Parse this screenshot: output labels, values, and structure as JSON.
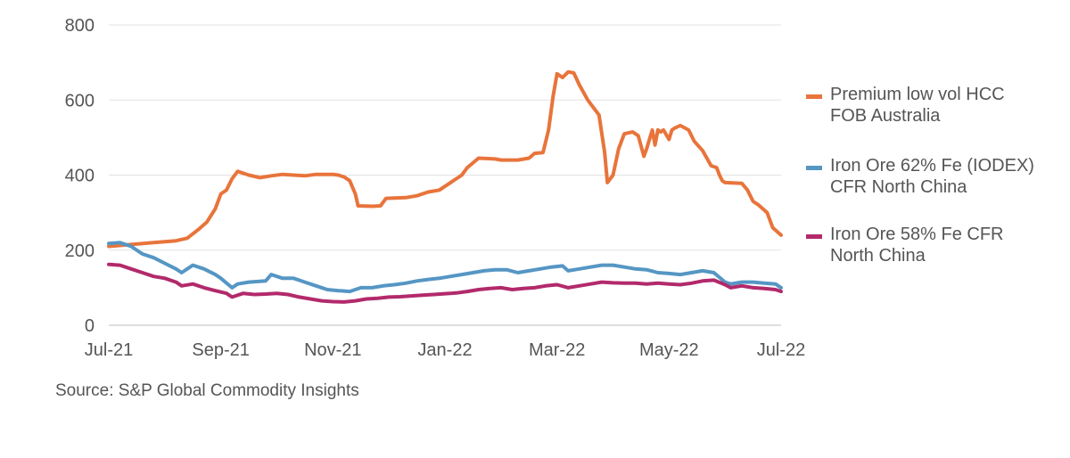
{
  "chart_data": {
    "type": "line",
    "title": "",
    "xlabel": "",
    "ylabel": "",
    "ylim": [
      0,
      800
    ],
    "yticks": [
      "0",
      "200",
      "400",
      "600",
      "800"
    ],
    "xlim": [
      0,
      12
    ],
    "xticks": [
      {
        "x": 0,
        "label": "Jul-21"
      },
      {
        "x": 2,
        "label": "Sep-21"
      },
      {
        "x": 4,
        "label": "Nov-21"
      },
      {
        "x": 6,
        "label": "Jan-22"
      },
      {
        "x": 8,
        "label": "Mar-22"
      },
      {
        "x": 10,
        "label": "May-22"
      },
      {
        "x": 12,
        "label": "Jul-22"
      }
    ],
    "grid": "horizontal",
    "legend_position": "right",
    "source": "Source: S&P Global Commodity Insights",
    "series": [
      {
        "name": "Premium low vol HCC FOB Australia",
        "legend_lines": [
          "Premium low vol HCC",
          "FOB Australia"
        ],
        "color": "#E8743B",
        "points": [
          [
            0,
            210
          ],
          [
            0.4,
            215
          ],
          [
            0.8,
            220
          ],
          [
            1.2,
            225
          ],
          [
            1.4,
            232
          ],
          [
            1.6,
            255
          ],
          [
            1.75,
            275
          ],
          [
            1.9,
            310
          ],
          [
            2.0,
            350
          ],
          [
            2.1,
            360
          ],
          [
            2.2,
            390
          ],
          [
            2.3,
            410
          ],
          [
            2.5,
            400
          ],
          [
            2.7,
            393
          ],
          [
            2.9,
            398
          ],
          [
            3.1,
            402
          ],
          [
            3.3,
            400
          ],
          [
            3.5,
            398
          ],
          [
            3.7,
            402
          ],
          [
            4.0,
            402
          ],
          [
            4.1,
            400
          ],
          [
            4.2,
            395
          ],
          [
            4.3,
            385
          ],
          [
            4.4,
            350
          ],
          [
            4.45,
            318
          ],
          [
            4.7,
            317
          ],
          [
            4.85,
            318
          ],
          [
            4.95,
            338
          ],
          [
            5.3,
            340
          ],
          [
            5.5,
            345
          ],
          [
            5.7,
            355
          ],
          [
            5.9,
            360
          ],
          [
            6.1,
            380
          ],
          [
            6.3,
            400
          ],
          [
            6.4,
            420
          ],
          [
            6.6,
            445
          ],
          [
            6.9,
            443
          ],
          [
            7.0,
            440
          ],
          [
            7.3,
            440
          ],
          [
            7.5,
            445
          ],
          [
            7.6,
            458
          ],
          [
            7.75,
            460
          ],
          [
            7.85,
            520
          ],
          [
            7.93,
            610
          ],
          [
            8.0,
            670
          ],
          [
            8.1,
            660
          ],
          [
            8.2,
            675
          ],
          [
            8.3,
            672
          ],
          [
            8.4,
            640
          ],
          [
            8.55,
            600
          ],
          [
            8.75,
            560
          ],
          [
            8.85,
            460
          ],
          [
            8.9,
            380
          ],
          [
            9.0,
            400
          ],
          [
            9.1,
            470
          ],
          [
            9.2,
            510
          ],
          [
            9.35,
            515
          ],
          [
            9.45,
            505
          ],
          [
            9.55,
            450
          ],
          [
            9.6,
            470
          ],
          [
            9.7,
            520
          ],
          [
            9.75,
            480
          ],
          [
            9.8,
            520
          ],
          [
            9.85,
            515
          ],
          [
            9.9,
            520
          ],
          [
            10.0,
            495
          ],
          [
            10.05,
            520
          ],
          [
            10.1,
            525
          ],
          [
            10.2,
            532
          ],
          [
            10.35,
            520
          ],
          [
            10.45,
            490
          ],
          [
            10.6,
            465
          ],
          [
            10.75,
            425
          ],
          [
            10.85,
            420
          ],
          [
            10.9,
            400
          ],
          [
            10.95,
            385
          ],
          [
            11.0,
            380
          ],
          [
            11.3,
            378
          ],
          [
            11.4,
            360
          ],
          [
            11.5,
            330
          ],
          [
            11.6,
            320
          ],
          [
            11.75,
            300
          ],
          [
            11.85,
            260
          ],
          [
            12.0,
            240
          ]
        ]
      },
      {
        "name": "Iron Ore 62% Fe (IODEX) CFR North China",
        "legend_lines": [
          "Iron Ore 62% Fe (IODEX)",
          "CFR North China"
        ],
        "color": "#5596C4",
        "points": [
          [
            0,
            218
          ],
          [
            0.2,
            220
          ],
          [
            0.4,
            210
          ],
          [
            0.6,
            190
          ],
          [
            0.8,
            180
          ],
          [
            1.0,
            165
          ],
          [
            1.2,
            150
          ],
          [
            1.3,
            140
          ],
          [
            1.5,
            160
          ],
          [
            1.7,
            150
          ],
          [
            1.9,
            135
          ],
          [
            2.0,
            125
          ],
          [
            2.2,
            100
          ],
          [
            2.3,
            110
          ],
          [
            2.5,
            115
          ],
          [
            2.8,
            118
          ],
          [
            2.9,
            135
          ],
          [
            3.1,
            125
          ],
          [
            3.3,
            125
          ],
          [
            3.5,
            115
          ],
          [
            3.7,
            105
          ],
          [
            3.9,
            95
          ],
          [
            4.1,
            92
          ],
          [
            4.3,
            90
          ],
          [
            4.5,
            100
          ],
          [
            4.7,
            100
          ],
          [
            4.9,
            105
          ],
          [
            5.1,
            108
          ],
          [
            5.3,
            112
          ],
          [
            5.5,
            118
          ],
          [
            5.7,
            122
          ],
          [
            5.9,
            125
          ],
          [
            6.1,
            130
          ],
          [
            6.3,
            135
          ],
          [
            6.5,
            140
          ],
          [
            6.7,
            145
          ],
          [
            6.9,
            148
          ],
          [
            7.1,
            148
          ],
          [
            7.3,
            140
          ],
          [
            7.5,
            145
          ],
          [
            7.7,
            150
          ],
          [
            7.9,
            155
          ],
          [
            8.1,
            158
          ],
          [
            8.2,
            145
          ],
          [
            8.4,
            150
          ],
          [
            8.6,
            155
          ],
          [
            8.8,
            160
          ],
          [
            9.0,
            160
          ],
          [
            9.2,
            155
          ],
          [
            9.4,
            150
          ],
          [
            9.6,
            148
          ],
          [
            9.8,
            140
          ],
          [
            10.0,
            138
          ],
          [
            10.2,
            135
          ],
          [
            10.4,
            140
          ],
          [
            10.6,
            145
          ],
          [
            10.8,
            140
          ],
          [
            11.0,
            115
          ],
          [
            11.1,
            110
          ],
          [
            11.3,
            115
          ],
          [
            11.5,
            115
          ],
          [
            11.7,
            112
          ],
          [
            11.9,
            110
          ],
          [
            12.0,
            100
          ]
        ]
      },
      {
        "name": "Iron Ore 58% Fe CFR North China",
        "legend_lines": [
          "Iron Ore 58% Fe CFR",
          "North China"
        ],
        "color": "#B22A6B",
        "points": [
          [
            0,
            162
          ],
          [
            0.2,
            160
          ],
          [
            0.4,
            150
          ],
          [
            0.6,
            140
          ],
          [
            0.8,
            130
          ],
          [
            1.0,
            125
          ],
          [
            1.2,
            115
          ],
          [
            1.3,
            105
          ],
          [
            1.5,
            110
          ],
          [
            1.7,
            100
          ],
          [
            1.9,
            92
          ],
          [
            2.1,
            85
          ],
          [
            2.2,
            75
          ],
          [
            2.4,
            85
          ],
          [
            2.6,
            82
          ],
          [
            2.8,
            83
          ],
          [
            3.0,
            85
          ],
          [
            3.2,
            82
          ],
          [
            3.4,
            75
          ],
          [
            3.6,
            70
          ],
          [
            3.8,
            65
          ],
          [
            4.0,
            63
          ],
          [
            4.2,
            62
          ],
          [
            4.4,
            65
          ],
          [
            4.6,
            70
          ],
          [
            4.8,
            72
          ],
          [
            5.0,
            75
          ],
          [
            5.2,
            76
          ],
          [
            5.4,
            78
          ],
          [
            5.6,
            80
          ],
          [
            5.8,
            82
          ],
          [
            6.0,
            84
          ],
          [
            6.2,
            86
          ],
          [
            6.4,
            90
          ],
          [
            6.6,
            95
          ],
          [
            6.8,
            98
          ],
          [
            7.0,
            100
          ],
          [
            7.2,
            95
          ],
          [
            7.4,
            98
          ],
          [
            7.6,
            100
          ],
          [
            7.8,
            105
          ],
          [
            8.0,
            108
          ],
          [
            8.2,
            100
          ],
          [
            8.4,
            105
          ],
          [
            8.6,
            110
          ],
          [
            8.8,
            115
          ],
          [
            9.0,
            113
          ],
          [
            9.2,
            112
          ],
          [
            9.4,
            112
          ],
          [
            9.6,
            110
          ],
          [
            9.8,
            112
          ],
          [
            10.0,
            110
          ],
          [
            10.2,
            108
          ],
          [
            10.4,
            112
          ],
          [
            10.6,
            118
          ],
          [
            10.8,
            120
          ],
          [
            11.0,
            108
          ],
          [
            11.1,
            100
          ],
          [
            11.3,
            105
          ],
          [
            11.5,
            100
          ],
          [
            11.7,
            98
          ],
          [
            11.9,
            95
          ],
          [
            12.0,
            90
          ]
        ]
      }
    ]
  }
}
